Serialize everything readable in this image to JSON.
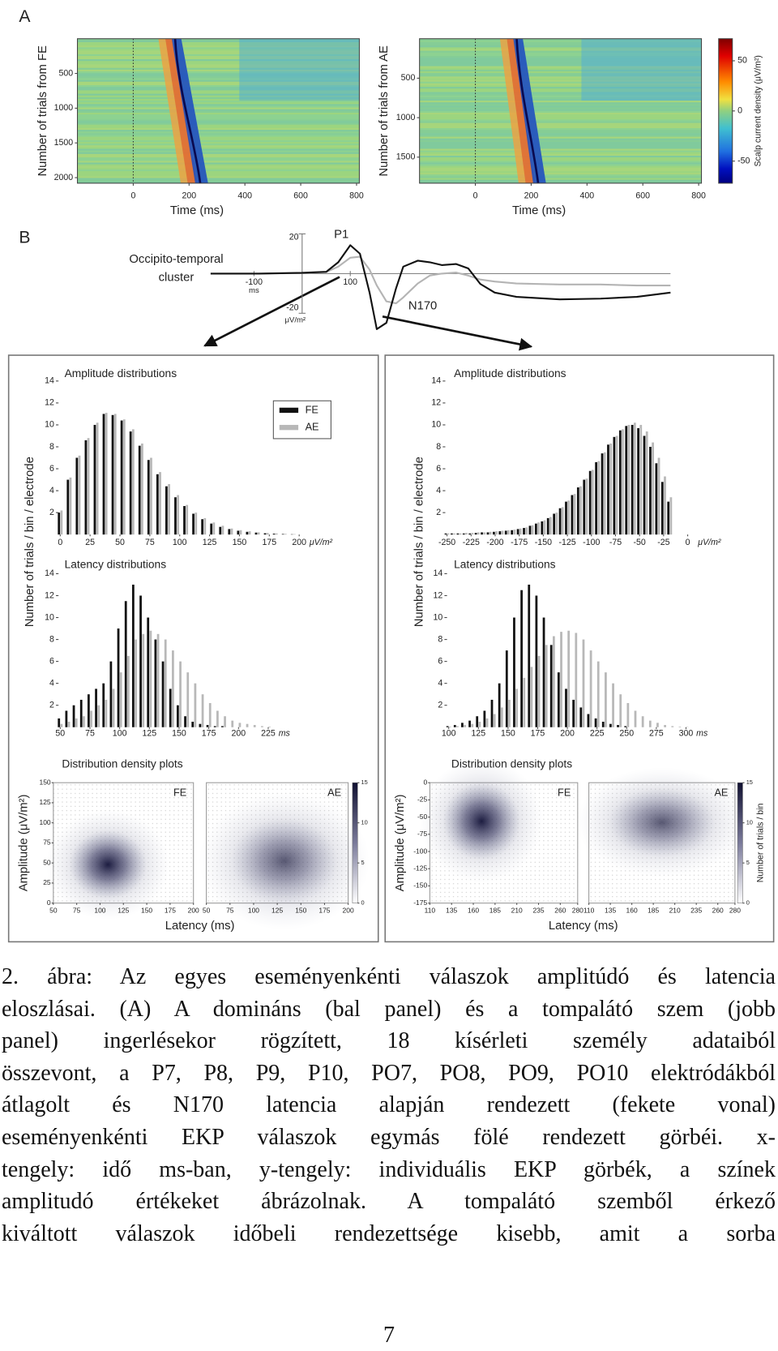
{
  "figure": {
    "panel_a": {
      "label": "A",
      "plots": [
        {
          "ylabel": "Number of trials from FE",
          "xlabel": "Time (ms)",
          "xlim": [
            -200,
            810
          ],
          "xticks": [
            0,
            200,
            400,
            600,
            800
          ],
          "ylim": [
            0,
            2080
          ],
          "yticks": [
            500,
            1000,
            1500,
            2000
          ]
        },
        {
          "ylabel": "Number of trials from AE",
          "xlabel": "Time (ms)",
          "xlim": [
            -200,
            810
          ],
          "xticks": [
            0,
            200,
            400,
            600,
            800
          ],
          "ylim": [
            0,
            1830
          ],
          "yticks": [
            500,
            1000,
            1500
          ]
        }
      ],
      "colorbar": {
        "label": "Scalp current density (μV/m²)",
        "lim": [
          -72,
          72
        ],
        "ticks": [
          50,
          0,
          -50
        ]
      }
    },
    "panel_b": {
      "label": "B",
      "erp": {
        "cluster_label": [
          "Occipito-temporal",
          "cluster"
        ],
        "x": [
          -190,
          -90,
          0,
          50,
          75,
          100,
          120,
          140,
          155,
          175,
          195,
          210,
          240,
          265,
          290,
          320,
          345,
          370,
          400,
          445,
          535,
          620,
          695,
          765
        ],
        "series": [
          {
            "color": "#b4b4b4",
            "values": [
              0,
              0,
              0.3,
              0.8,
              3.5,
              8,
              8.5,
              2,
              -6,
              -14,
              -15,
              -12,
              -5,
              -1,
              0,
              0.5,
              -1,
              -3,
              -4,
              -5,
              -5.5,
              -5.5,
              -6,
              -6
            ]
          },
          {
            "color": "#111111",
            "values": [
              0,
              0,
              0.4,
              0.9,
              5.7,
              14.3,
              10,
              -9.6,
              -28,
              -24.8,
              -7.4,
              3.5,
              6.5,
              5.7,
              4.3,
              4.8,
              2.6,
              -5.2,
              -9.6,
              -11.7,
              -13,
              -12.6,
              -11.7,
              -9.6
            ]
          }
        ],
        "xlim": [
          -190,
          765
        ],
        "ylim": [
          -29,
          23
        ],
        "xticks": [
          -100,
          100
        ],
        "yticks": [
          20,
          -20
        ],
        "x_unit": "ms",
        "y_unit": "μV/m²",
        "p1": "P1",
        "n170": "N170"
      }
    },
    "panels": [
      {
        "ylabel": "Number of trials / bin / electrode",
        "amplitude": {
          "title": "Amplitude distributions",
          "legend": true,
          "x": [
            0,
            7.5,
            15,
            22.5,
            30,
            37.5,
            45,
            52.5,
            60,
            67.5,
            75,
            82.5,
            90,
            97.5,
            105,
            112.5,
            120,
            127.5,
            135,
            142.5,
            150,
            157.5,
            165,
            172.5,
            180,
            187.5,
            195
          ],
          "series": [
            {
              "name": "FE",
              "color": "#111111",
              "values": [
                2,
                5,
                7,
                8.6,
                10,
                11,
                10.9,
                10.4,
                9.4,
                8.1,
                6.8,
                5.5,
                4.4,
                3.4,
                2.6,
                1.9,
                1.4,
                1.0,
                0.7,
                0.5,
                0.35,
                0.25,
                0.18,
                0.12,
                0.08,
                0.05,
                0.03
              ]
            },
            {
              "name": "AE",
              "color": "#b8b8b8",
              "values": [
                2.2,
                5.2,
                7.2,
                8.8,
                10.2,
                11.1,
                11,
                10.5,
                9.6,
                8.3,
                7,
                5.7,
                4.6,
                3.6,
                2.7,
                2,
                1.5,
                1.1,
                0.8,
                0.55,
                0.4,
                0.3,
                0.2,
                0.14,
                0.1,
                0.06,
                0.04
              ]
            }
          ],
          "xlim": [
            0,
            200
          ],
          "xticks": [
            0,
            25,
            50,
            75,
            100,
            125,
            150,
            175,
            200
          ],
          "x_unit": "μV/m²",
          "ylim": [
            0,
            14
          ],
          "yticks": [
            2,
            4,
            6,
            8,
            10,
            12,
            14
          ]
        },
        "latency": {
          "title": "Latency distributions",
          "x": [
            50,
            56.25,
            62.5,
            68.75,
            75,
            81.25,
            87.5,
            93.75,
            100,
            106.25,
            112.5,
            118.75,
            125,
            131.25,
            137.5,
            143.75,
            150,
            156.25,
            162.5,
            168.75,
            175,
            181.25,
            187.5,
            193.75,
            200,
            206.25,
            212.5,
            218.75,
            225
          ],
          "series": [
            {
              "color": "#111111",
              "values": [
                0.8,
                1.5,
                2,
                2.5,
                3,
                3.5,
                4,
                6,
                9,
                11.5,
                13,
                12,
                10,
                8,
                6,
                3.5,
                2,
                1,
                0.5,
                0.3,
                0.2,
                0.1,
                0.1,
                0,
                0,
                0,
                0,
                0,
                0
              ]
            },
            {
              "color": "#b8b8b8",
              "values": [
                0.3,
                0.5,
                0.8,
                1,
                1.5,
                2,
                2.5,
                3.5,
                5,
                6.5,
                8,
                8.5,
                8.8,
                8.5,
                8,
                7,
                6,
                5,
                4,
                3,
                2.2,
                1.5,
                1,
                0.6,
                0.4,
                0.3,
                0.2,
                0.1,
                0.05
              ]
            }
          ],
          "xlim": [
            50,
            225
          ],
          "xticks": [
            50,
            75,
            100,
            125,
            150,
            175,
            200,
            225
          ],
          "x_unit": "ms",
          "ylim": [
            0,
            14
          ],
          "yticks": [
            2,
            4,
            6,
            8,
            10,
            12,
            14
          ]
        },
        "density": {
          "title": "Distribution density plots",
          "ylabel": "Amplitude (μV/m²)",
          "xlabel": "Latency (ms)",
          "xlim": [
            50,
            200
          ],
          "xticks": [
            50,
            75,
            100,
            125,
            150,
            175,
            200
          ],
          "ylim": [
            0,
            150
          ],
          "yticks": [
            0,
            25,
            50,
            75,
            100,
            125,
            150
          ],
          "plots": [
            {
              "label": "FE"
            },
            {
              "label": "AE"
            }
          ],
          "colorbar": {
            "lim": [
              0,
              15
            ],
            "ticks": [
              0,
              5,
              10,
              15
            ]
          }
        }
      },
      {
        "ylabel": "Number of trials / bin / electrode",
        "amplitude": {
          "title": "Amplitude distributions",
          "x": [
            -250,
            -243.75,
            -237.5,
            -231.25,
            -225,
            -218.75,
            -212.5,
            -206.25,
            -200,
            -193.75,
            -187.5,
            -181.25,
            -175,
            -168.75,
            -162.5,
            -156.25,
            -150,
            -143.75,
            -137.5,
            -131.25,
            -125,
            -118.75,
            -112.5,
            -106.25,
            -100,
            -93.75,
            -87.5,
            -81.25,
            -75,
            -68.75,
            -62.5,
            -56.25,
            -50,
            -43.75,
            -37.5,
            -31.25,
            -25,
            -18.75
          ],
          "series": [
            {
              "color": "#111111",
              "values": [
                0.1,
                0.1,
                0.1,
                0.1,
                0.1,
                0.15,
                0.2,
                0.2,
                0.25,
                0.3,
                0.35,
                0.4,
                0.5,
                0.6,
                0.8,
                1,
                1.2,
                1.5,
                1.9,
                2.4,
                3,
                3.6,
                4.3,
                5,
                5.8,
                6.6,
                7.4,
                8.2,
                8.9,
                9.5,
                9.9,
                10,
                9.7,
                9,
                8,
                6.5,
                4.8,
                3
              ]
            },
            {
              "color": "#b8b8b8",
              "values": [
                0.1,
                0.1,
                0.1,
                0.15,
                0.15,
                0.2,
                0.2,
                0.25,
                0.3,
                0.35,
                0.4,
                0.45,
                0.55,
                0.65,
                0.85,
                1.1,
                1.3,
                1.6,
                2,
                2.5,
                3.1,
                3.7,
                4.4,
                5.1,
                5.9,
                6.7,
                7.5,
                8.3,
                9,
                9.6,
                10,
                10.2,
                10,
                9.4,
                8.4,
                7,
                5.3,
                3.4
              ]
            }
          ],
          "xlim": [
            -250,
            0
          ],
          "xticks": [
            -250,
            -225,
            -200,
            -175,
            -150,
            -125,
            -100,
            -75,
            -50,
            -25,
            0
          ],
          "x_unit": "μV/m²",
          "ylim": [
            0,
            14
          ],
          "yticks": [
            2,
            4,
            6,
            8,
            10,
            12,
            14
          ]
        },
        "latency": {
          "title": "Latency distributions",
          "x": [
            100,
            106.25,
            112.5,
            118.75,
            125,
            131.25,
            137.5,
            143.75,
            150,
            156.25,
            162.5,
            168.75,
            175,
            181.25,
            187.5,
            193.75,
            200,
            206.25,
            212.5,
            218.75,
            225,
            231.25,
            237.5,
            243.75,
            250,
            256.25,
            262.5,
            268.75,
            275,
            281.25,
            287.5,
            293.75,
            300
          ],
          "series": [
            {
              "color": "#111111",
              "values": [
                0.1,
                0.2,
                0.4,
                0.6,
                1,
                1.5,
                2.5,
                4,
                7,
                10,
                12.5,
                13,
                12,
                10,
                7.5,
                5,
                3.5,
                2.5,
                1.8,
                1.2,
                0.8,
                0.5,
                0.3,
                0.2,
                0.1,
                0,
                0,
                0,
                0,
                0,
                0,
                0,
                0
              ]
            },
            {
              "color": "#b8b8b8",
              "values": [
                0.05,
                0.1,
                0.2,
                0.3,
                0.5,
                0.8,
                1.2,
                1.8,
                2.5,
                3.5,
                4.5,
                5.5,
                6.5,
                7.5,
                8.3,
                8.7,
                8.8,
                8.6,
                8,
                7,
                6,
                5,
                4,
                3,
                2.2,
                1.5,
                1,
                0.6,
                0.4,
                0.2,
                0.1,
                0.05,
                0.03
              ]
            }
          ],
          "xlim": [
            100,
            300
          ],
          "xticks": [
            100,
            125,
            150,
            175,
            200,
            225,
            250,
            275,
            300
          ],
          "x_unit": "ms",
          "ylim": [
            0,
            14
          ],
          "yticks": [
            2,
            4,
            6,
            8,
            10,
            12,
            14
          ]
        },
        "density": {
          "title": "Distribution density plots",
          "ylabel": "Amplitude (μV/m²)",
          "xlabel": "Latency (ms)",
          "xlim": [
            110,
            280
          ],
          "xticks": [
            110,
            135,
            160,
            185,
            210,
            235,
            260,
            280
          ],
          "ylim": [
            -175,
            0
          ],
          "yticks": [
            0,
            -25,
            -50,
            -75,
            -100,
            -125,
            -150,
            -175
          ],
          "plots": [
            {
              "label": "FE"
            },
            {
              "label": "AE"
            }
          ],
          "colorbar": {
            "lim": [
              0,
              15
            ],
            "ticks": [
              0,
              5,
              10,
              15
            ],
            "label": "Number of trials / bin"
          }
        }
      }
    ]
  },
  "caption": {
    "lines": [
      "2. ábra: Az egyes eseményenkénti válaszok amplitúdó és latencia",
      "eloszlásai. (A) A domináns (bal panel) és a tompalátó szem (jobb",
      "panel) ingerlésekor rögzített, 18 kísérleti személy adataiból",
      "összevont, a P7, P8, P9, P10, PO7, PO8, PO9, PO10 elektródákból",
      "átlagolt és N170 latencia alapján rendezett (fekete vonal)",
      "eseményenkénti EKP válaszok egymás fölé rendezett görbéi. x-",
      "tengely: idő ms-ban, y-tengely: individuális EKP görbék, a színek",
      "amplitudó értékeket ábrázolnak. A tompalátó szemből érkező",
      "kiváltott válaszok időbeli rendezettsége kisebb, amit a sorba"
    ]
  },
  "page_number": 7
}
